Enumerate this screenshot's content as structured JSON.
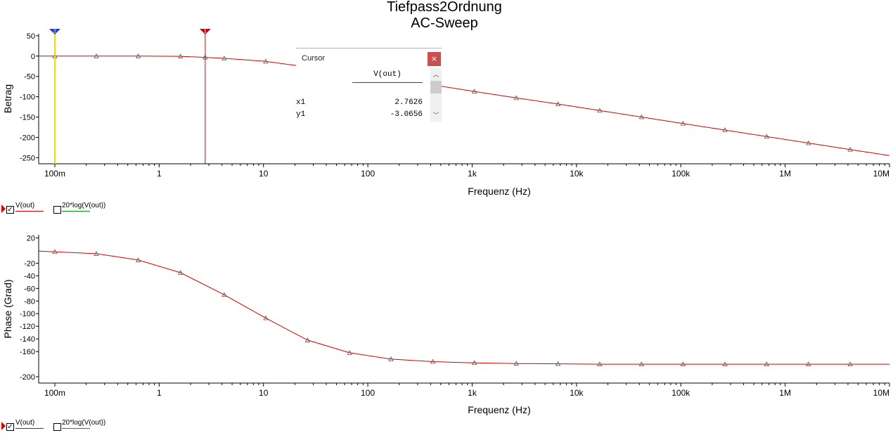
{
  "title": "Tiefpass2Ordnung",
  "subtitle": "AC-Sweep",
  "colors": {
    "trace": "#d80000",
    "cursor_marker_1": "#d80000",
    "cursor_marker_2": "#1f3ecf",
    "cursor2_line": "#f0e000",
    "legend_db": "#00a000"
  },
  "legend": [
    {
      "label": "V(out)",
      "checked": true,
      "color": "#d80000"
    },
    {
      "label": "20*log(V(out))",
      "checked": false,
      "color": "#00a000"
    }
  ],
  "cursor_dialog": {
    "title": "Cursor",
    "close_label": "×",
    "column": "V(out)",
    "rows": [
      {
        "label": "x1",
        "value": "2.7626"
      },
      {
        "label": "y1",
        "value": "-3.0656"
      }
    ]
  },
  "chart_data": [
    {
      "type": "line",
      "xscale": "log",
      "xlabel": "Frequenz (Hz)",
      "ylabel": "Betrag",
      "xlim": [
        0.07,
        10000000
      ],
      "ylim": [
        -265,
        55
      ],
      "x_ticks": [
        0.1,
        1,
        10,
        100,
        1000,
        10000,
        100000,
        1000000,
        10000000
      ],
      "x_tick_labels": [
        "100m",
        "1",
        "10",
        "100",
        "1k",
        "10k",
        "100k",
        "1M",
        "10M"
      ],
      "y_ticks": [
        50,
        0,
        -50,
        -100,
        -150,
        -200,
        -250
      ],
      "y_tick_labels": [
        "50",
        "0",
        "-50",
        "-100",
        "-150",
        "-200",
        "-250"
      ],
      "cursors": [
        {
          "id": "1",
          "x": 2.7626,
          "color": "#d80000"
        },
        {
          "id": "2",
          "x": 0.1,
          "color": "#1f3ecf"
        }
      ],
      "series": [
        {
          "x": [
            0.07,
            0.1,
            0.25,
            0.63,
            1.6,
            2.76,
            4.2,
            10.5,
            26.5,
            67,
            167,
            420,
            1050,
            2650,
            6650,
            16700,
            42000,
            105000,
            265000,
            665000,
            1670000,
            4200000,
            10000000
          ],
          "y": [
            0,
            0,
            0,
            0,
            -0.5,
            -3.07,
            -5.5,
            -13,
            -27,
            -41,
            -56,
            -71,
            -87,
            -103,
            -118,
            -134,
            -150,
            -166,
            -182,
            -198,
            -214,
            -230,
            -245
          ]
        }
      ]
    },
    {
      "type": "line",
      "xscale": "log",
      "xlabel": "Frequenz (Hz)",
      "ylabel": "Phase (Grad)",
      "xlim": [
        0.07,
        10000000
      ],
      "ylim": [
        -210,
        25
      ],
      "x_ticks": [
        0.1,
        1,
        10,
        100,
        1000,
        10000,
        100000,
        1000000,
        10000000
      ],
      "x_tick_labels": [
        "100m",
        "1",
        "10",
        "100",
        "1k",
        "10k",
        "100k",
        "1M",
        "10M"
      ],
      "y_ticks": [
        20,
        -20,
        -40,
        -60,
        -80,
        -100,
        -120,
        -140,
        -160,
        -200
      ],
      "y_tick_labels": [
        "20",
        "-20",
        "-40",
        "-60",
        "-80",
        "-100",
        "-120",
        "-140",
        "-160",
        "-200"
      ],
      "series": [
        {
          "x": [
            0.07,
            0.1,
            0.25,
            0.63,
            1.6,
            4.2,
            10.5,
            26.5,
            67,
            167,
            420,
            1050,
            2650,
            6650,
            16700,
            42000,
            105000,
            265000,
            665000,
            1670000,
            4200000,
            10000000
          ],
          "y": [
            -1,
            -2,
            -5,
            -15,
            -35,
            -70,
            -107,
            -142,
            -162,
            -172,
            -176,
            -178,
            -179,
            -179.5,
            -180,
            -180,
            -180,
            -180,
            -180,
            -180,
            -180,
            -180
          ]
        }
      ]
    }
  ]
}
